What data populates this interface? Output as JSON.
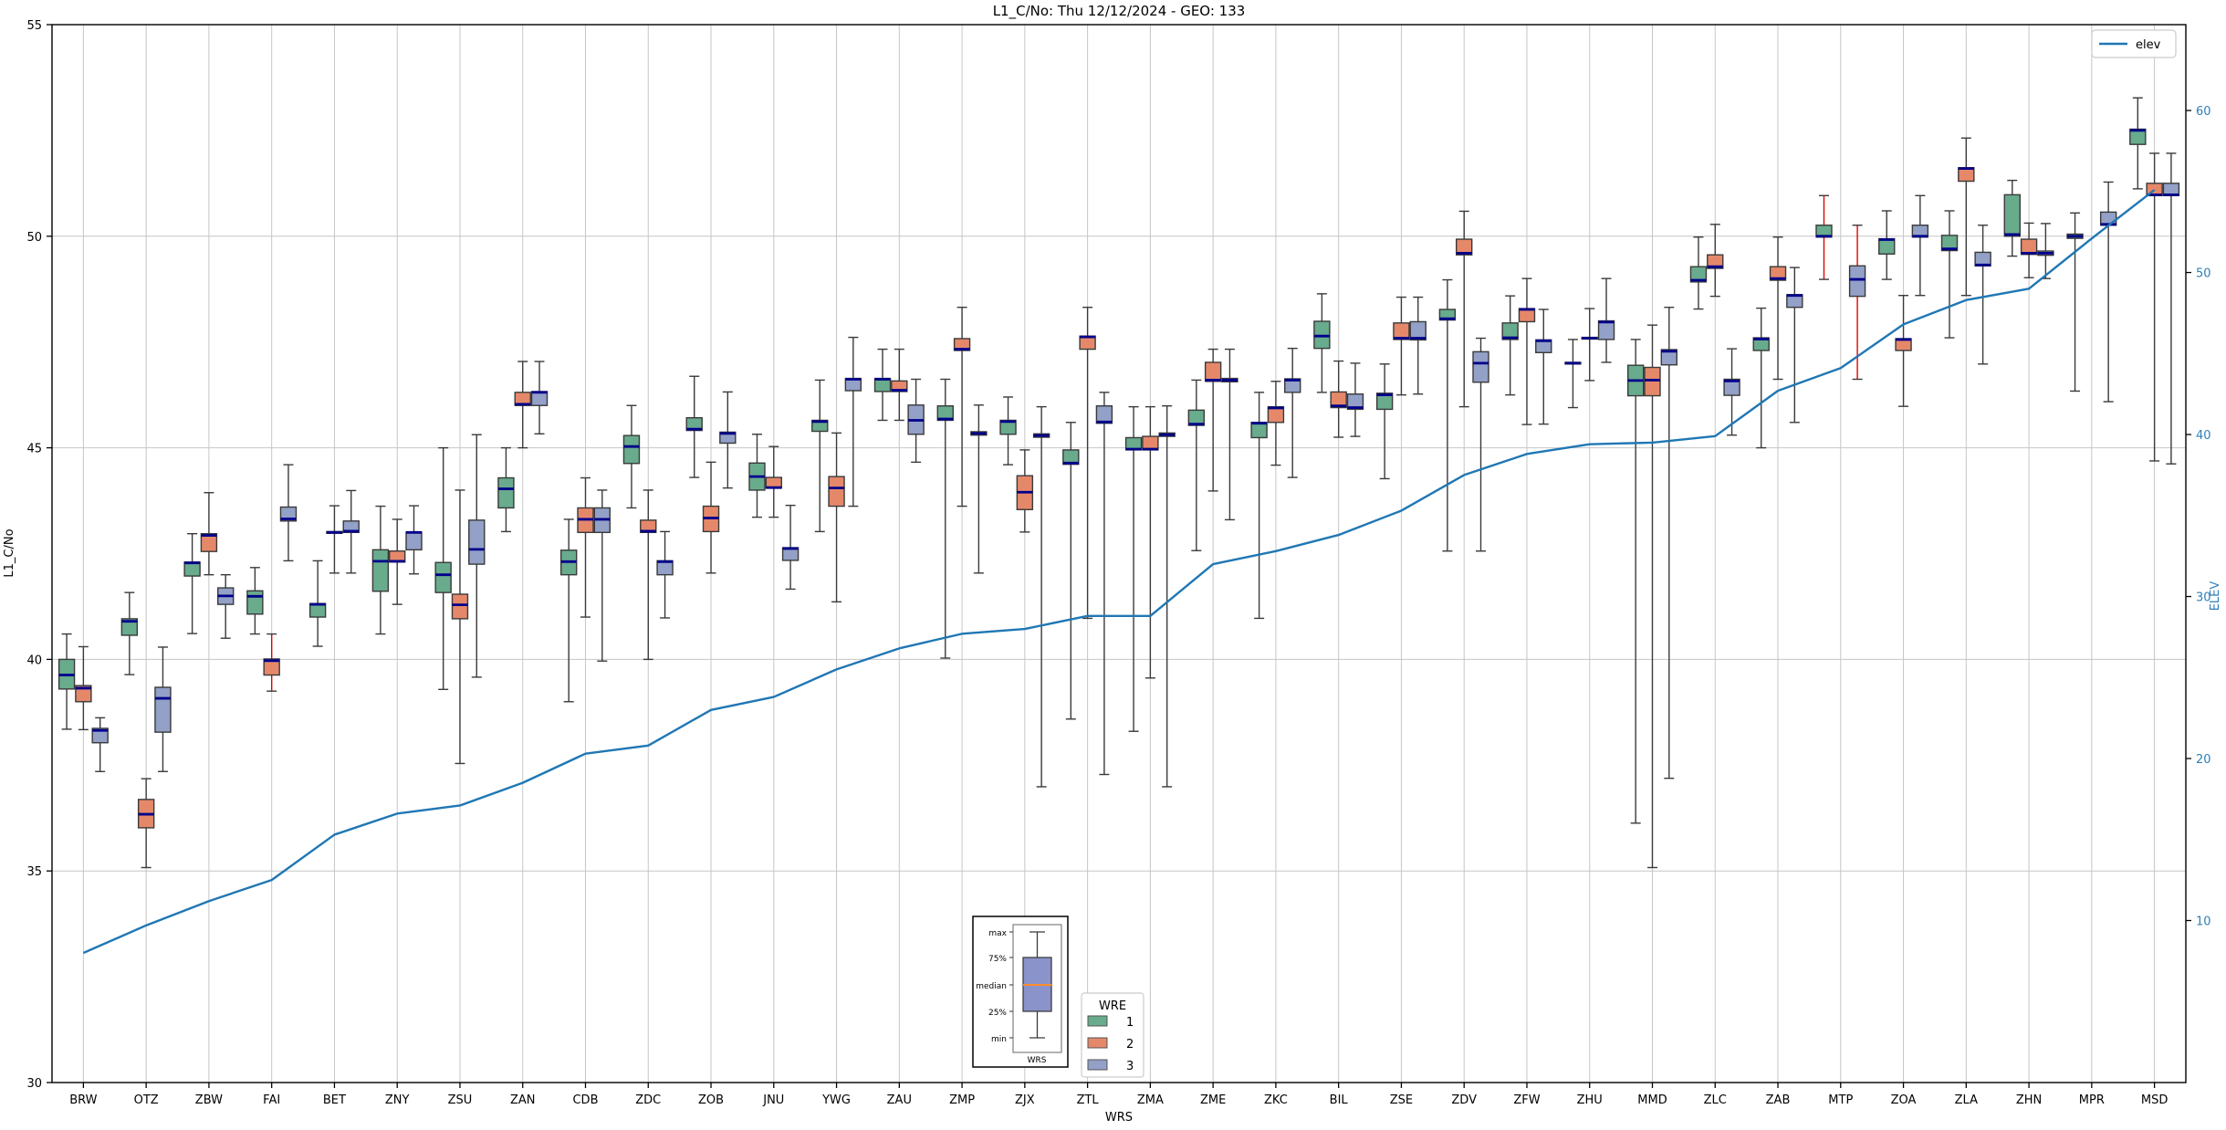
{
  "title": "L1_C/No: Thu 12/12/2024 - GEO: 133",
  "chart_data": {
    "type": "boxplot+line",
    "title": "L1_C/No: Thu 12/12/2024 - GEO: 133",
    "xlabel": "WRS",
    "ylabel_left": "L1_C/No",
    "ylabel_right": "ELEV",
    "ylim_left": [
      30,
      55
    ],
    "ylim_right": [
      0,
      65.3
    ],
    "yticks_left": [
      30,
      35,
      40,
      45,
      50,
      55
    ],
    "yticks_right": [
      10,
      20,
      30,
      40,
      50,
      60
    ],
    "grid": true,
    "colors": {
      "grid": "#c6c6c6",
      "spine": "#000000",
      "box_edge": "#3a3a3a",
      "median": "#00008b",
      "red_whisker": "#e60000",
      "elev_line": "#1f77b4",
      "right_tick_label": "#2f7fb8"
    },
    "categories": [
      "BRW",
      "OTZ",
      "ZBW",
      "FAI",
      "BET",
      "ZNY",
      "ZSU",
      "ZAN",
      "CDB",
      "ZDC",
      "ZOB",
      "JNU",
      "YWG",
      "ZAU",
      "ZMP",
      "ZJX",
      "ZTL",
      "ZMA",
      "ZME",
      "ZKC",
      "BIL",
      "ZSE",
      "ZDV",
      "ZFW",
      "ZHU",
      "MMD",
      "ZLC",
      "ZAB",
      "MTP",
      "ZOA",
      "ZLA",
      "ZHN",
      "MPR",
      "MSD"
    ],
    "series": [
      {
        "name": "1",
        "color": "#68ab8d",
        "boxes": [
          [
            39.3,
            39.63,
            40.0,
            38.35,
            40.6
          ],
          [
            40.57,
            40.9,
            40.96,
            39.64,
            41.58
          ],
          [
            41.97,
            42.28,
            42.3,
            40.61,
            42.97
          ],
          [
            41.07,
            41.49,
            41.62,
            40.6,
            42.17
          ],
          [
            41.0,
            41.3,
            41.32,
            40.31,
            42.33
          ],
          [
            41.61,
            42.32,
            42.59,
            40.6,
            43.62
          ],
          [
            41.58,
            42.0,
            42.29,
            39.29,
            45.0
          ],
          [
            43.58,
            44.03,
            44.29,
            43.02,
            45.0
          ],
          [
            42.0,
            42.31,
            42.58,
            39.0,
            43.31
          ],
          [
            44.63,
            45.03,
            45.29,
            43.58,
            46.0
          ],
          [
            45.41,
            45.44,
            45.71,
            44.3,
            46.69
          ],
          [
            44.0,
            44.32,
            44.64,
            43.36,
            45.32
          ],
          [
            45.39,
            45.62,
            45.65,
            43.02,
            46.6
          ],
          [
            46.33,
            46.62,
            46.64,
            45.65,
            47.33
          ],
          [
            45.65,
            45.68,
            45.99,
            40.03,
            46.62
          ],
          [
            45.32,
            45.62,
            45.65,
            44.6,
            46.2
          ],
          [
            44.61,
            44.64,
            44.95,
            38.59,
            45.6
          ],
          [
            44.95,
            44.97,
            45.24,
            38.3,
            45.97
          ],
          [
            45.53,
            45.56,
            45.89,
            42.57,
            46.6
          ],
          [
            45.24,
            45.58,
            45.6,
            40.97,
            46.31
          ],
          [
            47.35,
            47.64,
            47.99,
            46.31,
            48.64
          ],
          [
            45.91,
            46.25,
            46.29,
            44.27,
            46.98
          ],
          [
            48.02,
            48.05,
            48.27,
            42.56,
            48.97
          ],
          [
            47.56,
            47.6,
            47.95,
            46.25,
            48.59
          ],
          [
            46.98,
            47.0,
            47.02,
            45.95,
            47.56
          ],
          [
            46.23,
            46.59,
            46.95,
            36.13,
            47.56
          ],
          [
            48.92,
            48.96,
            49.28,
            48.28,
            49.98
          ],
          [
            47.3,
            47.57,
            47.6,
            45.0,
            48.3
          ],
          [
            49.98,
            50.0,
            50.26,
            48.98,
            50.96,
            "R"
          ],
          [
            49.58,
            49.92,
            49.94,
            48.98,
            50.6
          ],
          [
            49.66,
            49.7,
            50.02,
            47.6,
            50.6
          ],
          [
            50.0,
            50.04,
            50.98,
            49.53,
            51.32
          ],
          [
            49.95,
            50.0,
            50.05,
            46.34,
            50.55
          ],
          [
            52.17,
            52.5,
            52.53,
            51.12,
            53.27
          ]
        ]
      },
      {
        "name": "2",
        "color": "#e5886a",
        "boxes": [
          [
            39.0,
            39.32,
            39.38,
            38.34,
            40.3
          ],
          [
            36.02,
            36.34,
            36.69,
            35.08,
            37.18
          ],
          [
            42.55,
            42.93,
            42.97,
            42.0,
            43.94
          ],
          [
            39.63,
            39.97,
            40.01,
            39.25,
            40.6,
            "R"
          ],
          [
            42.98,
            43.0,
            43.02,
            42.04,
            43.63
          ],
          [
            42.3,
            42.32,
            42.56,
            41.3,
            43.31
          ],
          [
            40.96,
            41.29,
            41.54,
            37.54,
            44.0
          ],
          [
            46.0,
            46.03,
            46.31,
            45.0,
            47.04
          ],
          [
            43.0,
            43.31,
            43.58,
            41.0,
            44.29
          ],
          [
            43.0,
            43.03,
            43.29,
            40.0,
            44.0
          ],
          [
            43.02,
            43.34,
            43.62,
            42.04,
            44.66
          ],
          [
            44.05,
            44.06,
            44.3,
            43.36,
            45.03
          ],
          [
            43.62,
            44.05,
            44.32,
            41.36,
            45.35
          ],
          [
            46.33,
            46.36,
            46.58,
            45.65,
            47.33
          ],
          [
            47.3,
            47.33,
            47.58,
            43.62,
            48.32
          ],
          [
            43.54,
            43.95,
            44.34,
            43.01,
            44.95
          ],
          [
            47.33,
            47.62,
            47.64,
            40.97,
            48.32
          ],
          [
            44.95,
            44.97,
            45.27,
            39.56,
            45.97
          ],
          [
            46.57,
            46.6,
            47.02,
            43.98,
            47.33
          ],
          [
            45.6,
            45.94,
            45.97,
            44.59,
            46.57
          ],
          [
            45.95,
            45.99,
            46.32,
            45.25,
            47.05
          ],
          [
            47.56,
            47.59,
            47.95,
            46.25,
            48.56
          ],
          [
            49.56,
            49.6,
            49.93,
            45.97,
            50.59
          ],
          [
            47.98,
            48.27,
            48.29,
            45.55,
            49.0
          ],
          [
            47.57,
            47.59,
            47.61,
            46.59,
            48.29
          ],
          [
            46.23,
            46.6,
            46.9,
            35.08,
            47.9
          ],
          [
            49.24,
            49.28,
            49.56,
            48.58,
            50.28
          ],
          [
            48.96,
            49.0,
            49.28,
            46.62,
            49.98
          ],
          null,
          [
            47.3,
            47.56,
            47.58,
            45.98,
            48.6
          ],
          [
            51.3,
            51.6,
            51.62,
            48.6,
            52.32
          ],
          [
            49.57,
            49.6,
            49.93,
            49.02,
            50.31
          ],
          null,
          [
            50.96,
            50.98,
            51.25,
            44.69,
            51.96
          ]
        ]
      },
      {
        "name": "3",
        "color": "#93a0c7",
        "boxes": [
          [
            38.03,
            38.32,
            38.37,
            37.35,
            38.62
          ],
          [
            38.28,
            39.08,
            39.34,
            37.35,
            40.29
          ],
          [
            41.3,
            41.5,
            41.69,
            40.5,
            42.0
          ],
          [
            43.27,
            43.32,
            43.6,
            42.33,
            44.6
          ],
          [
            43.0,
            43.03,
            43.27,
            42.04,
            43.99
          ],
          [
            42.59,
            43.0,
            43.01,
            42.02,
            43.63
          ],
          [
            42.25,
            42.6,
            43.29,
            39.58,
            45.31
          ],
          [
            46.0,
            46.31,
            46.33,
            45.33,
            47.04
          ],
          [
            43.0,
            43.31,
            43.58,
            39.96,
            44.0
          ],
          [
            42.0,
            42.31,
            42.33,
            40.98,
            43.02
          ],
          [
            45.11,
            45.34,
            45.37,
            44.05,
            46.32
          ],
          [
            42.34,
            42.62,
            42.64,
            41.66,
            43.64
          ],
          [
            46.35,
            46.62,
            46.64,
            43.62,
            47.61
          ],
          [
            45.32,
            45.65,
            46.01,
            44.66,
            46.62
          ],
          [
            45.3,
            45.34,
            45.38,
            42.04,
            46.01
          ],
          [
            45.25,
            45.29,
            45.33,
            36.99,
            45.97
          ],
          [
            45.58,
            45.61,
            45.99,
            37.28,
            46.31
          ],
          [
            45.27,
            45.31,
            45.35,
            36.99,
            45.99
          ],
          [
            46.56,
            46.6,
            46.64,
            43.3,
            47.33
          ],
          [
            46.31,
            46.6,
            46.63,
            44.3,
            47.35
          ],
          [
            45.91,
            45.95,
            46.27,
            45.27,
            47.0
          ],
          [
            47.55,
            47.59,
            47.98,
            46.27,
            48.56
          ],
          [
            46.55,
            47.0,
            47.27,
            42.56,
            47.59
          ],
          [
            47.25,
            47.53,
            47.55,
            45.56,
            48.27
          ],
          [
            47.56,
            47.97,
            48.0,
            47.02,
            49.0
          ],
          [
            46.96,
            47.28,
            47.32,
            37.19,
            48.32
          ],
          [
            46.24,
            46.58,
            46.62,
            45.3,
            47.34
          ],
          [
            48.32,
            48.6,
            48.62,
            45.6,
            49.26
          ],
          [
            48.58,
            48.98,
            49.3,
            46.62,
            50.26,
            "R"
          ],
          [
            49.98,
            50.0,
            50.26,
            48.6,
            50.96
          ],
          [
            49.3,
            49.32,
            49.62,
            46.98,
            50.26
          ],
          [
            49.55,
            49.6,
            49.65,
            49.0,
            50.3
          ],
          [
            50.26,
            50.28,
            50.57,
            46.09,
            51.28
          ],
          [
            50.96,
            50.98,
            51.25,
            44.62,
            51.96
          ]
        ]
      }
    ],
    "elev_series": {
      "name": "elev",
      "values": [
        8.0,
        9.7,
        11.2,
        12.5,
        15.3,
        16.6,
        17.1,
        18.5,
        20.3,
        20.8,
        23.0,
        23.8,
        25.5,
        26.8,
        27.7,
        28.0,
        28.8,
        28.8,
        32.0,
        32.8,
        33.8,
        35.3,
        37.5,
        38.8,
        39.4,
        39.5,
        39.9,
        42.7,
        44.1,
        46.8,
        48.3,
        49.0,
        52.1,
        55.1
      ]
    },
    "legend_elev": {
      "label": "elev"
    },
    "legend_wre": {
      "title": "WRE",
      "entries": [
        {
          "label": "1",
          "color": "#68ab8d"
        },
        {
          "label": "2",
          "color": "#e5886a"
        },
        {
          "label": "3",
          "color": "#93a0c7"
        }
      ]
    },
    "legend_inset": {
      "labels": {
        "max": "max",
        "p75": "75%",
        "median": "median",
        "p25": "25%",
        "min": "min"
      },
      "xlabel": "WRS",
      "box_color": "#8b93cb",
      "median_color": "#ff8c2a"
    }
  }
}
